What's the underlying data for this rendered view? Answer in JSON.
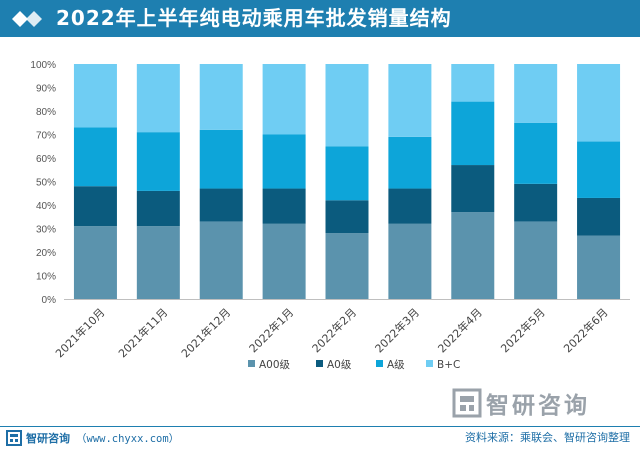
{
  "header": {
    "title": "2022年上半年纯电动乘用车批发销量结构"
  },
  "chart_data": {
    "type": "bar",
    "stacked": true,
    "title": "2022年上半年纯电动乘用车批发销量结构",
    "categories": [
      "2021年10月",
      "2021年11月",
      "2021年12月",
      "2022年1月",
      "2022年2月",
      "2022年3月",
      "2022年4月",
      "2022年5月",
      "2022年6月"
    ],
    "series": [
      {
        "name": "A00级",
        "color": "#5b93ad",
        "values": [
          31,
          31,
          33,
          32,
          28,
          32,
          37,
          33,
          27
        ]
      },
      {
        "name": "A0级",
        "color": "#0b5b7e",
        "values": [
          17,
          15,
          14,
          15,
          14,
          15,
          20,
          16,
          16
        ]
      },
      {
        "name": "A级",
        "color": "#0da5d9",
        "values": [
          25,
          25,
          25,
          23,
          23,
          22,
          27,
          26,
          24
        ]
      },
      {
        "name": "B+C",
        "color": "#6fcdf3",
        "values": [
          27,
          29,
          28,
          30,
          35,
          31,
          16,
          25,
          33
        ]
      }
    ],
    "yticks": [
      "0%",
      "10%",
      "20%",
      "30%",
      "40%",
      "50%",
      "60%",
      "70%",
      "80%",
      "90%",
      "100%"
    ],
    "ylim": [
      0,
      100
    ],
    "legend_position": "bottom"
  },
  "footer": {
    "brand": "智研咨询",
    "website": "（www.chyxx.com）",
    "source": "资料来源：乘联会、智研咨询整理"
  },
  "watermark": {
    "brand": "智研咨询"
  }
}
